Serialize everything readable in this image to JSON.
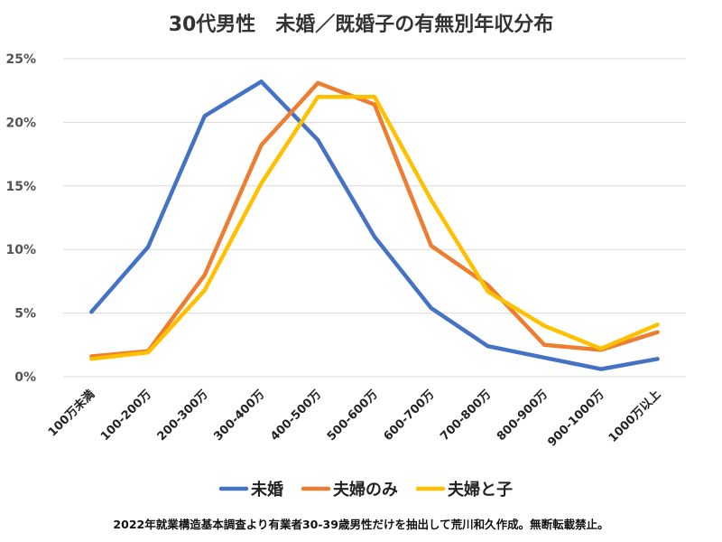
{
  "chart_data": {
    "type": "line",
    "title": "30代男性　未婚／既婚子の有無別年収分布",
    "categories": [
      "100万未満",
      "100-200万",
      "200-300万",
      "300-400万",
      "400-500万",
      "500-600万",
      "600-700万",
      "700-800万",
      "800-900万",
      "900-1000万",
      "1000万以上"
    ],
    "series": [
      {
        "name": "未婚",
        "color": "#4472C4",
        "values": [
          5.1,
          10.2,
          20.5,
          23.2,
          18.6,
          11.0,
          5.4,
          2.4,
          1.5,
          0.6,
          1.4
        ]
      },
      {
        "name": "夫婦のみ",
        "color": "#ED7D31",
        "values": [
          1.6,
          2.0,
          8.0,
          18.2,
          23.1,
          21.4,
          10.3,
          7.2,
          2.5,
          2.1,
          3.5
        ]
      },
      {
        "name": "夫婦と子",
        "color": "#FFC000",
        "values": [
          1.4,
          1.9,
          6.8,
          15.2,
          22.0,
          22.0,
          13.9,
          6.7,
          4.0,
          2.2,
          4.1
        ]
      }
    ],
    "yticks": [
      "0%",
      "5%",
      "10%",
      "15%",
      "20%",
      "25%"
    ],
    "ylim": [
      0,
      25
    ],
    "grid": true,
    "legend_position": "bottom"
  },
  "footer": "2022年就業構造基本調査より有業者30-39歳男性だけを抽出して荒川和久作成。無断転載禁止。"
}
